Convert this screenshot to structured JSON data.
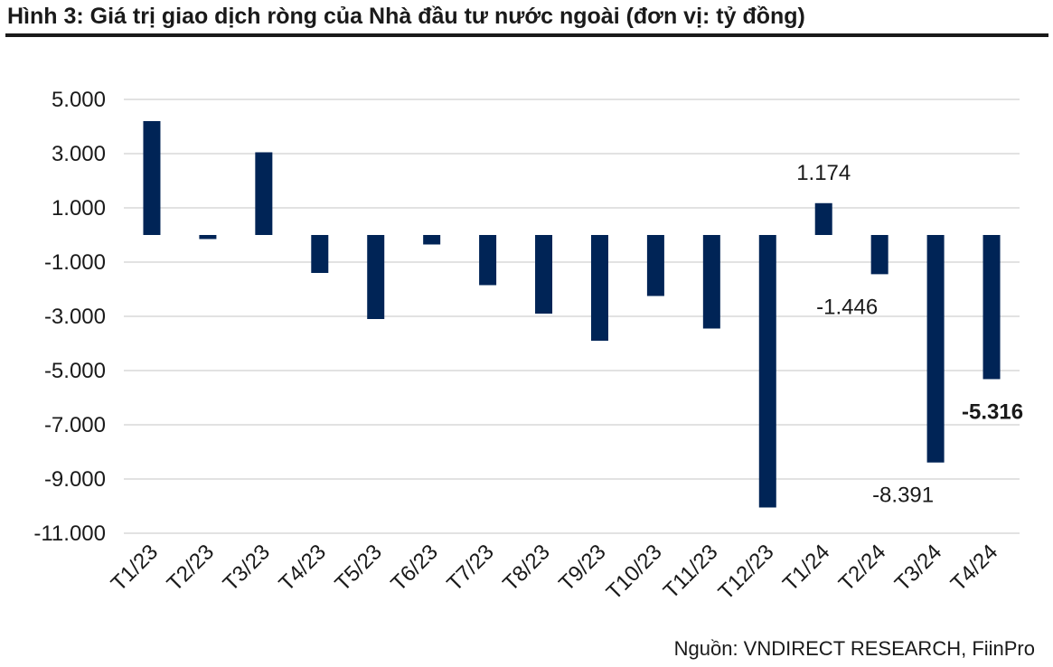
{
  "header": {
    "title": "Hình 3: Giá trị giao dịch ròng của Nhà đầu tư nước ngoài (đơn vị: tỷ đồng)"
  },
  "footer": {
    "source": "Nguồn: VNDIRECT RESEARCH, FiinPro"
  },
  "chart_data": {
    "type": "bar",
    "title": "Hình 3: Giá trị giao dịch ròng của Nhà đầu tư nước ngoài (đơn vị: tỷ đồng)",
    "xlabel": "",
    "ylabel": "",
    "categories": [
      "T1/23",
      "T2/23",
      "T3/23",
      "T4/23",
      "T5/23",
      "T6/23",
      "T7/23",
      "T8/23",
      "T9/23",
      "T10/23",
      "T11/23",
      "T12/23",
      "T1/24",
      "T2/24",
      "T3/24",
      "T4/24"
    ],
    "values": [
      4200,
      -150,
      3050,
      -1400,
      -3100,
      -350,
      -1850,
      -2900,
      -3900,
      -2250,
      -3450,
      -10050,
      1174,
      -1446,
      -8391,
      -5316
    ],
    "ylim": [
      -11000,
      5000
    ],
    "yticks": [
      5000,
      3000,
      1000,
      -1000,
      -3000,
      -5000,
      -7000,
      -9000,
      -11000
    ],
    "ytick_labels": [
      "5.000",
      "3.000",
      "1.000",
      "-1.000",
      "-3.000",
      "-5.000",
      "-7.000",
      "-9.000",
      "-11.000"
    ],
    "data_labels": [
      {
        "index": 12,
        "text": "1.174",
        "bold": false
      },
      {
        "index": 13,
        "text": "-1.446",
        "bold": false
      },
      {
        "index": 14,
        "text": "-8.391",
        "bold": false
      },
      {
        "index": 15,
        "text": "-5.316",
        "bold": true
      }
    ],
    "grid": true,
    "legend": "none",
    "bar_color": "#002456",
    "grid_color": "#d9d9d9"
  }
}
